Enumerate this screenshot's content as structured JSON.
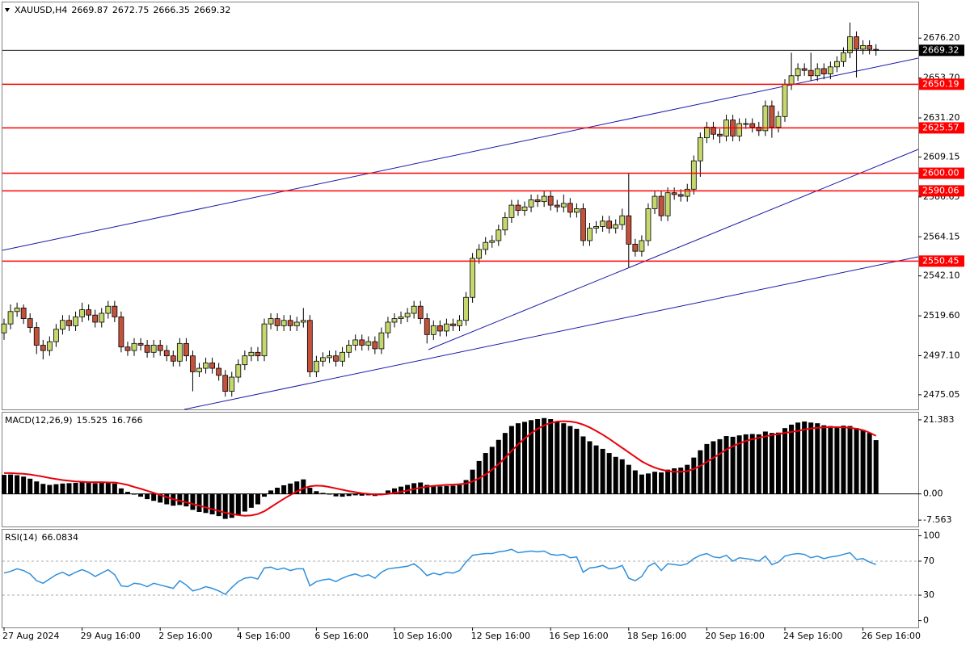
{
  "chart_data": [
    {
      "type": "candlestick",
      "title": "XAUUSD,H4",
      "ohlc": [
        [
          2510,
          2518,
          2506,
          2515
        ],
        [
          2515,
          2526,
          2512,
          2522
        ],
        [
          2522,
          2527,
          2519,
          2524
        ],
        [
          2524,
          2526,
          2515,
          2518
        ],
        [
          2518,
          2521,
          2510,
          2513
        ],
        [
          2513,
          2516,
          2498,
          2503
        ],
        [
          2503,
          2506,
          2495,
          2500
        ],
        [
          2500,
          2508,
          2497,
          2505
        ],
        [
          2505,
          2515,
          2502,
          2512
        ],
        [
          2512,
          2520,
          2509,
          2517
        ],
        [
          2517,
          2520,
          2511,
          2514
        ],
        [
          2514,
          2522,
          2511,
          2519
        ],
        [
          2519,
          2527,
          2516,
          2523
        ],
        [
          2523,
          2526,
          2517,
          2520
        ],
        [
          2520,
          2523,
          2513,
          2516
        ],
        [
          2516,
          2524,
          2513,
          2521
        ],
        [
          2521,
          2528,
          2518,
          2525
        ],
        [
          2525,
          2528,
          2516,
          2519
        ],
        [
          2519,
          2522,
          2499,
          2502
        ],
        [
          2502,
          2505,
          2497,
          2500
        ],
        [
          2500,
          2507,
          2497,
          2504
        ],
        [
          2504,
          2507,
          2500,
          2503
        ],
        [
          2503,
          2506,
          2496,
          2499
        ],
        [
          2499,
          2506,
          2496,
          2503
        ],
        [
          2503,
          2506,
          2497,
          2500
        ],
        [
          2500,
          2503,
          2494,
          2497
        ],
        [
          2497,
          2500,
          2491,
          2494
        ],
        [
          2494,
          2507,
          2491,
          2504
        ],
        [
          2504,
          2507,
          2494,
          2497
        ],
        [
          2497,
          2500,
          2477,
          2488
        ],
        [
          2488,
          2493,
          2485,
          2490
        ],
        [
          2490,
          2496,
          2487,
          2493
        ],
        [
          2493,
          2496,
          2487,
          2490
        ],
        [
          2490,
          2493,
          2483,
          2486
        ],
        [
          2486,
          2489,
          2474,
          2477
        ],
        [
          2477,
          2488,
          2474,
          2485
        ],
        [
          2485,
          2495,
          2482,
          2492
        ],
        [
          2492,
          2500,
          2489,
          2497
        ],
        [
          2497,
          2502,
          2494,
          2499
        ],
        [
          2499,
          2502,
          2494,
          2497
        ],
        [
          2497,
          2518,
          2494,
          2515
        ],
        [
          2515,
          2521,
          2512,
          2518
        ],
        [
          2518,
          2521,
          2511,
          2514
        ],
        [
          2514,
          2520,
          2511,
          2517
        ],
        [
          2517,
          2520,
          2511,
          2514
        ],
        [
          2514,
          2519,
          2511,
          2516
        ],
        [
          2516,
          2524,
          2513,
          2517
        ],
        [
          2517,
          2520,
          2485,
          2488
        ],
        [
          2488,
          2497,
          2485,
          2494
        ],
        [
          2494,
          2499,
          2491,
          2496
        ],
        [
          2496,
          2500,
          2493,
          2497
        ],
        [
          2497,
          2500,
          2491,
          2494
        ],
        [
          2494,
          2502,
          2491,
          2499
        ],
        [
          2499,
          2506,
          2496,
          2503
        ],
        [
          2503,
          2509,
          2500,
          2506
        ],
        [
          2506,
          2509,
          2500,
          2503
        ],
        [
          2503,
          2508,
          2500,
          2505
        ],
        [
          2505,
          2508,
          2498,
          2501
        ],
        [
          2501,
          2513,
          2498,
          2510
        ],
        [
          2510,
          2519,
          2507,
          2516
        ],
        [
          2516,
          2521,
          2513,
          2518
        ],
        [
          2518,
          2522,
          2515,
          2519
        ],
        [
          2519,
          2524,
          2516,
          2521
        ],
        [
          2521,
          2528,
          2518,
          2525
        ],
        [
          2525,
          2528,
          2515,
          2518
        ],
        [
          2518,
          2521,
          2504,
          2509
        ],
        [
          2509,
          2517,
          2506,
          2514
        ],
        [
          2514,
          2517,
          2508,
          2511
        ],
        [
          2511,
          2518,
          2508,
          2515
        ],
        [
          2515,
          2518,
          2511,
          2514
        ],
        [
          2514,
          2520,
          2511,
          2517
        ],
        [
          2517,
          2533,
          2514,
          2530
        ],
        [
          2530,
          2555,
          2527,
          2552
        ],
        [
          2552,
          2560,
          2549,
          2557
        ],
        [
          2557,
          2564,
          2554,
          2561
        ],
        [
          2561,
          2565,
          2558,
          2562
        ],
        [
          2562,
          2571,
          2559,
          2568
        ],
        [
          2568,
          2578,
          2565,
          2575
        ],
        [
          2575,
          2585,
          2572,
          2582
        ],
        [
          2582,
          2585,
          2576,
          2579
        ],
        [
          2579,
          2584,
          2576,
          2581
        ],
        [
          2581,
          2588,
          2578,
          2585
        ],
        [
          2585,
          2588,
          2581,
          2584
        ],
        [
          2584,
          2590,
          2581,
          2587
        ],
        [
          2587,
          2590,
          2579,
          2582
        ],
        [
          2582,
          2585,
          2578,
          2581
        ],
        [
          2581,
          2588,
          2578,
          2583
        ],
        [
          2583,
          2586,
          2575,
          2578
        ],
        [
          2578,
          2583,
          2575,
          2580
        ],
        [
          2580,
          2583,
          2559,
          2562
        ],
        [
          2562,
          2572,
          2559,
          2569
        ],
        [
          2569,
          2573,
          2566,
          2570
        ],
        [
          2570,
          2576,
          2567,
          2573
        ],
        [
          2573,
          2576,
          2566,
          2569
        ],
        [
          2569,
          2574,
          2566,
          2571
        ],
        [
          2571,
          2580,
          2568,
          2576
        ],
        [
          2576,
          2600,
          2547,
          2560
        ],
        [
          2560,
          2563,
          2553,
          2556
        ],
        [
          2556,
          2565,
          2553,
          2562
        ],
        [
          2562,
          2583,
          2559,
          2580
        ],
        [
          2580,
          2590,
          2577,
          2587
        ],
        [
          2587,
          2590,
          2573,
          2576
        ],
        [
          2576,
          2592,
          2573,
          2589
        ],
        [
          2589,
          2592,
          2585,
          2588
        ],
        [
          2588,
          2591,
          2584,
          2587
        ],
        [
          2587,
          2594,
          2584,
          2591
        ],
        [
          2591,
          2610,
          2588,
          2607
        ],
        [
          2607,
          2623,
          2598,
          2620
        ],
        [
          2620,
          2629,
          2617,
          2626
        ],
        [
          2626,
          2629,
          2619,
          2622
        ],
        [
          2622,
          2625,
          2617,
          2621
        ],
        [
          2621,
          2633,
          2618,
          2630
        ],
        [
          2630,
          2633,
          2618,
          2621
        ],
        [
          2621,
          2631,
          2618,
          2628
        ],
        [
          2628,
          2631,
          2625,
          2628
        ],
        [
          2628,
          2631,
          2623,
          2626
        ],
        [
          2626,
          2629,
          2621,
          2624
        ],
        [
          2624,
          2641,
          2621,
          2638
        ],
        [
          2638,
          2641,
          2620,
          2626
        ],
        [
          2626,
          2635,
          2623,
          2632
        ],
        [
          2632,
          2653,
          2629,
          2650
        ],
        [
          2650,
          2668,
          2647,
          2655
        ],
        [
          2655,
          2662,
          2652,
          2659
        ],
        [
          2659,
          2662,
          2655,
          2658
        ],
        [
          2658,
          2668,
          2652,
          2655
        ],
        [
          2655,
          2662,
          2652,
          2659
        ],
        [
          2659,
          2662,
          2653,
          2656
        ],
        [
          2656,
          2663,
          2653,
          2660
        ],
        [
          2660,
          2666,
          2657,
          2663
        ],
        [
          2663,
          2671,
          2660,
          2668
        ],
        [
          2668,
          2685,
          2665,
          2677
        ],
        [
          2677,
          2680,
          2654,
          2670
        ],
        [
          2670,
          2675,
          2667,
          2672
        ],
        [
          2672,
          2675,
          2667,
          2669.87
        ],
        [
          2669.87,
          2672.75,
          2666.35,
          2669.32
        ]
      ],
      "up_color": "#c5d86d",
      "down_color": "#c4523a",
      "ylim": [
        2466.8,
        2696.8
      ],
      "yticks": [
        {
          "value": 2676.2,
          "label": "2676.20"
        },
        {
          "value": 2653.7,
          "label": "2653.70"
        },
        {
          "value": 2631.2,
          "label": "2631.20"
        },
        2609.15,
        2586.65,
        2564.15,
        {
          "value": 2542.1,
          "label": "2542.10"
        },
        {
          "value": 2519.6,
          "label": "2519.60"
        },
        {
          "value": 2497.1,
          "label": "2497.10"
        },
        2475.05
      ],
      "levels": [
        2650.19,
        2625.57,
        {
          "value": 2600,
          "label": "2600.00"
        },
        2590.06,
        2550.45
      ],
      "level_color": "#ff0000",
      "xticks": [
        {
          "value": 0,
          "label": "27 Aug 2024"
        },
        {
          "value": 12,
          "label": "29 Aug 16:00"
        },
        {
          "value": 24,
          "label": "2 Sep 16:00"
        },
        {
          "value": 36,
          "label": "4 Sep 16:00"
        },
        {
          "value": 48,
          "label": "6 Sep 16:00"
        },
        {
          "value": 60,
          "label": "10 Sep 16:00"
        },
        {
          "value": 72,
          "label": "12 Sep 16:00"
        },
        {
          "value": 84,
          "label": "16 Sep 16:00"
        },
        {
          "value": 96,
          "label": "18 Sep 16:00"
        },
        {
          "value": 108,
          "label": "20 Sep 16:00"
        },
        {
          "value": 120,
          "label": "24 Sep 16:00"
        },
        {
          "value": 132,
          "label": "26 Sep 16:00"
        }
      ]
    },
    {
      "type": "macd",
      "title": "MACD(12,26,9)",
      "histogram": [
        5.5,
        5.6,
        5.4,
        5.0,
        4.4,
        3.6,
        2.9,
        2.6,
        2.8,
        3.0,
        3.1,
        3.2,
        3.4,
        3.3,
        3.1,
        3.2,
        3.4,
        3.0,
        1.6,
        0.6,
        -0.2,
        -0.8,
        -1.5,
        -2.0,
        -2.5,
        -3.0,
        -3.4,
        -3.2,
        -3.6,
        -4.6,
        -5.2,
        -5.5,
        -5.9,
        -6.4,
        -7.2,
        -6.9,
        -6.0,
        -5.1,
        -4.0,
        -3.0,
        -0.8,
        1.0,
        1.8,
        2.5,
        3.0,
        3.6,
        4.2,
        1.8,
        0.8,
        0.3,
        -0.2,
        -0.7,
        -0.8,
        -0.6,
        -0.4,
        -0.5,
        -0.4,
        -0.6,
        0.1,
        1.0,
        1.6,
        2.1,
        2.6,
        3.1,
        3.3,
        2.6,
        2.4,
        2.2,
        2.3,
        2.4,
        2.6,
        4.0,
        7.0,
        9.5,
        11.8,
        13.6,
        15.6,
        17.6,
        19.6,
        20.4,
        20.8,
        21.3,
        21.6,
        21.9,
        21.6,
        21.0,
        20.4,
        19.6,
        18.8,
        16.6,
        15.2,
        14.0,
        13.0,
        11.8,
        10.7,
        10.0,
        8.4,
        6.8,
        5.6,
        5.9,
        6.4,
        6.2,
        7.0,
        7.4,
        7.6,
        8.4,
        10.5,
        12.6,
        14.4,
        15.2,
        15.8,
        16.7,
        16.5,
        16.9,
        17.2,
        17.3,
        17.2,
        18.0,
        17.6,
        17.7,
        19.0,
        20.0,
        20.6,
        20.9,
        20.6,
        20.4,
        19.8,
        19.6,
        19.4,
        19.7,
        19.6,
        19.0,
        18.5,
        17.6,
        15.525
      ],
      "signal": [
        6.0,
        6.0,
        5.9,
        5.8,
        5.6,
        5.3,
        5.0,
        4.6,
        4.3,
        4.0,
        3.8,
        3.6,
        3.5,
        3.4,
        3.4,
        3.4,
        3.3,
        3.3,
        3.0,
        2.6,
        2.0,
        1.5,
        0.9,
        0.3,
        -0.3,
        -0.9,
        -1.5,
        -2.0,
        -2.4,
        -2.9,
        -3.4,
        -3.9,
        -4.4,
        -4.9,
        -5.4,
        -5.8,
        -6.1,
        -6.3,
        -6.2,
        -5.8,
        -5.0,
        -3.8,
        -2.6,
        -1.4,
        -0.3,
        0.7,
        1.6,
        2.2,
        2.4,
        2.3,
        2.0,
        1.6,
        1.2,
        0.8,
        0.5,
        0.2,
        0.0,
        -0.2,
        -0.2,
        0.0,
        0.3,
        0.6,
        1.0,
        1.4,
        1.8,
        2.1,
        2.3,
        2.5,
        2.6,
        2.7,
        2.8,
        3.0,
        3.6,
        4.5,
        5.6,
        7.0,
        8.6,
        10.4,
        12.4,
        14.3,
        16.0,
        17.5,
        18.8,
        19.8,
        20.5,
        20.9,
        21.0,
        20.9,
        20.6,
        20.0,
        19.2,
        18.2,
        17.1,
        15.9,
        14.6,
        13.3,
        12.0,
        10.7,
        9.4,
        8.4,
        7.6,
        7.0,
        6.6,
        6.4,
        6.4,
        6.6,
        7.2,
        8.1,
        9.2,
        10.4,
        11.6,
        12.8,
        13.8,
        14.6,
        15.3,
        15.8,
        16.2,
        16.6,
        17.0,
        17.3,
        17.6,
        17.9,
        18.2,
        18.6,
        18.9,
        19.1,
        19.2,
        19.3,
        19.3,
        19.2,
        19.1,
        18.8,
        18.4,
        17.7,
        16.766
      ],
      "bar_color": "#000000",
      "signal_color": "#e8000b",
      "ylim": [
        -9.4,
        23.7
      ],
      "yticks": [
        21.383,
        {
          "value": 0,
          "label": "0.00"
        },
        -7.563
      ]
    },
    {
      "type": "rsi",
      "title": "RSI(14)",
      "values": [
        56,
        58,
        61,
        59,
        55,
        47,
        44,
        49,
        54,
        57,
        53,
        57,
        60,
        57,
        52,
        56,
        60,
        54,
        41,
        40,
        44,
        43,
        40,
        44,
        42,
        40,
        38,
        47,
        42,
        35,
        37,
        40,
        38,
        35,
        31,
        39,
        46,
        50,
        51,
        49,
        62,
        63,
        60,
        62,
        59,
        61,
        61,
        41,
        46,
        48,
        49,
        46,
        50,
        53,
        55,
        52,
        54,
        50,
        57,
        61,
        62,
        63,
        64,
        67,
        61,
        53,
        56,
        54,
        57,
        56,
        59,
        69,
        77,
        78,
        79,
        79,
        81,
        82,
        84,
        80,
        81,
        82,
        81,
        82,
        78,
        77,
        78,
        74,
        75,
        57,
        62,
        63,
        65,
        61,
        62,
        65,
        50,
        47,
        52,
        64,
        68,
        59,
        67,
        66,
        65,
        67,
        73,
        77,
        79,
        75,
        74,
        77,
        70,
        74,
        73,
        72,
        70,
        76,
        66,
        69,
        76,
        78,
        79,
        78,
        74,
        76,
        73,
        75,
        76,
        78,
        80,
        72,
        73,
        69,
        66.0834
      ],
      "color": "#2f8fdb",
      "ylim": [
        -8,
        108
      ],
      "yticks": [
        100,
        70,
        30,
        0
      ],
      "levels": [
        70,
        30
      ]
    }
  ]
}
